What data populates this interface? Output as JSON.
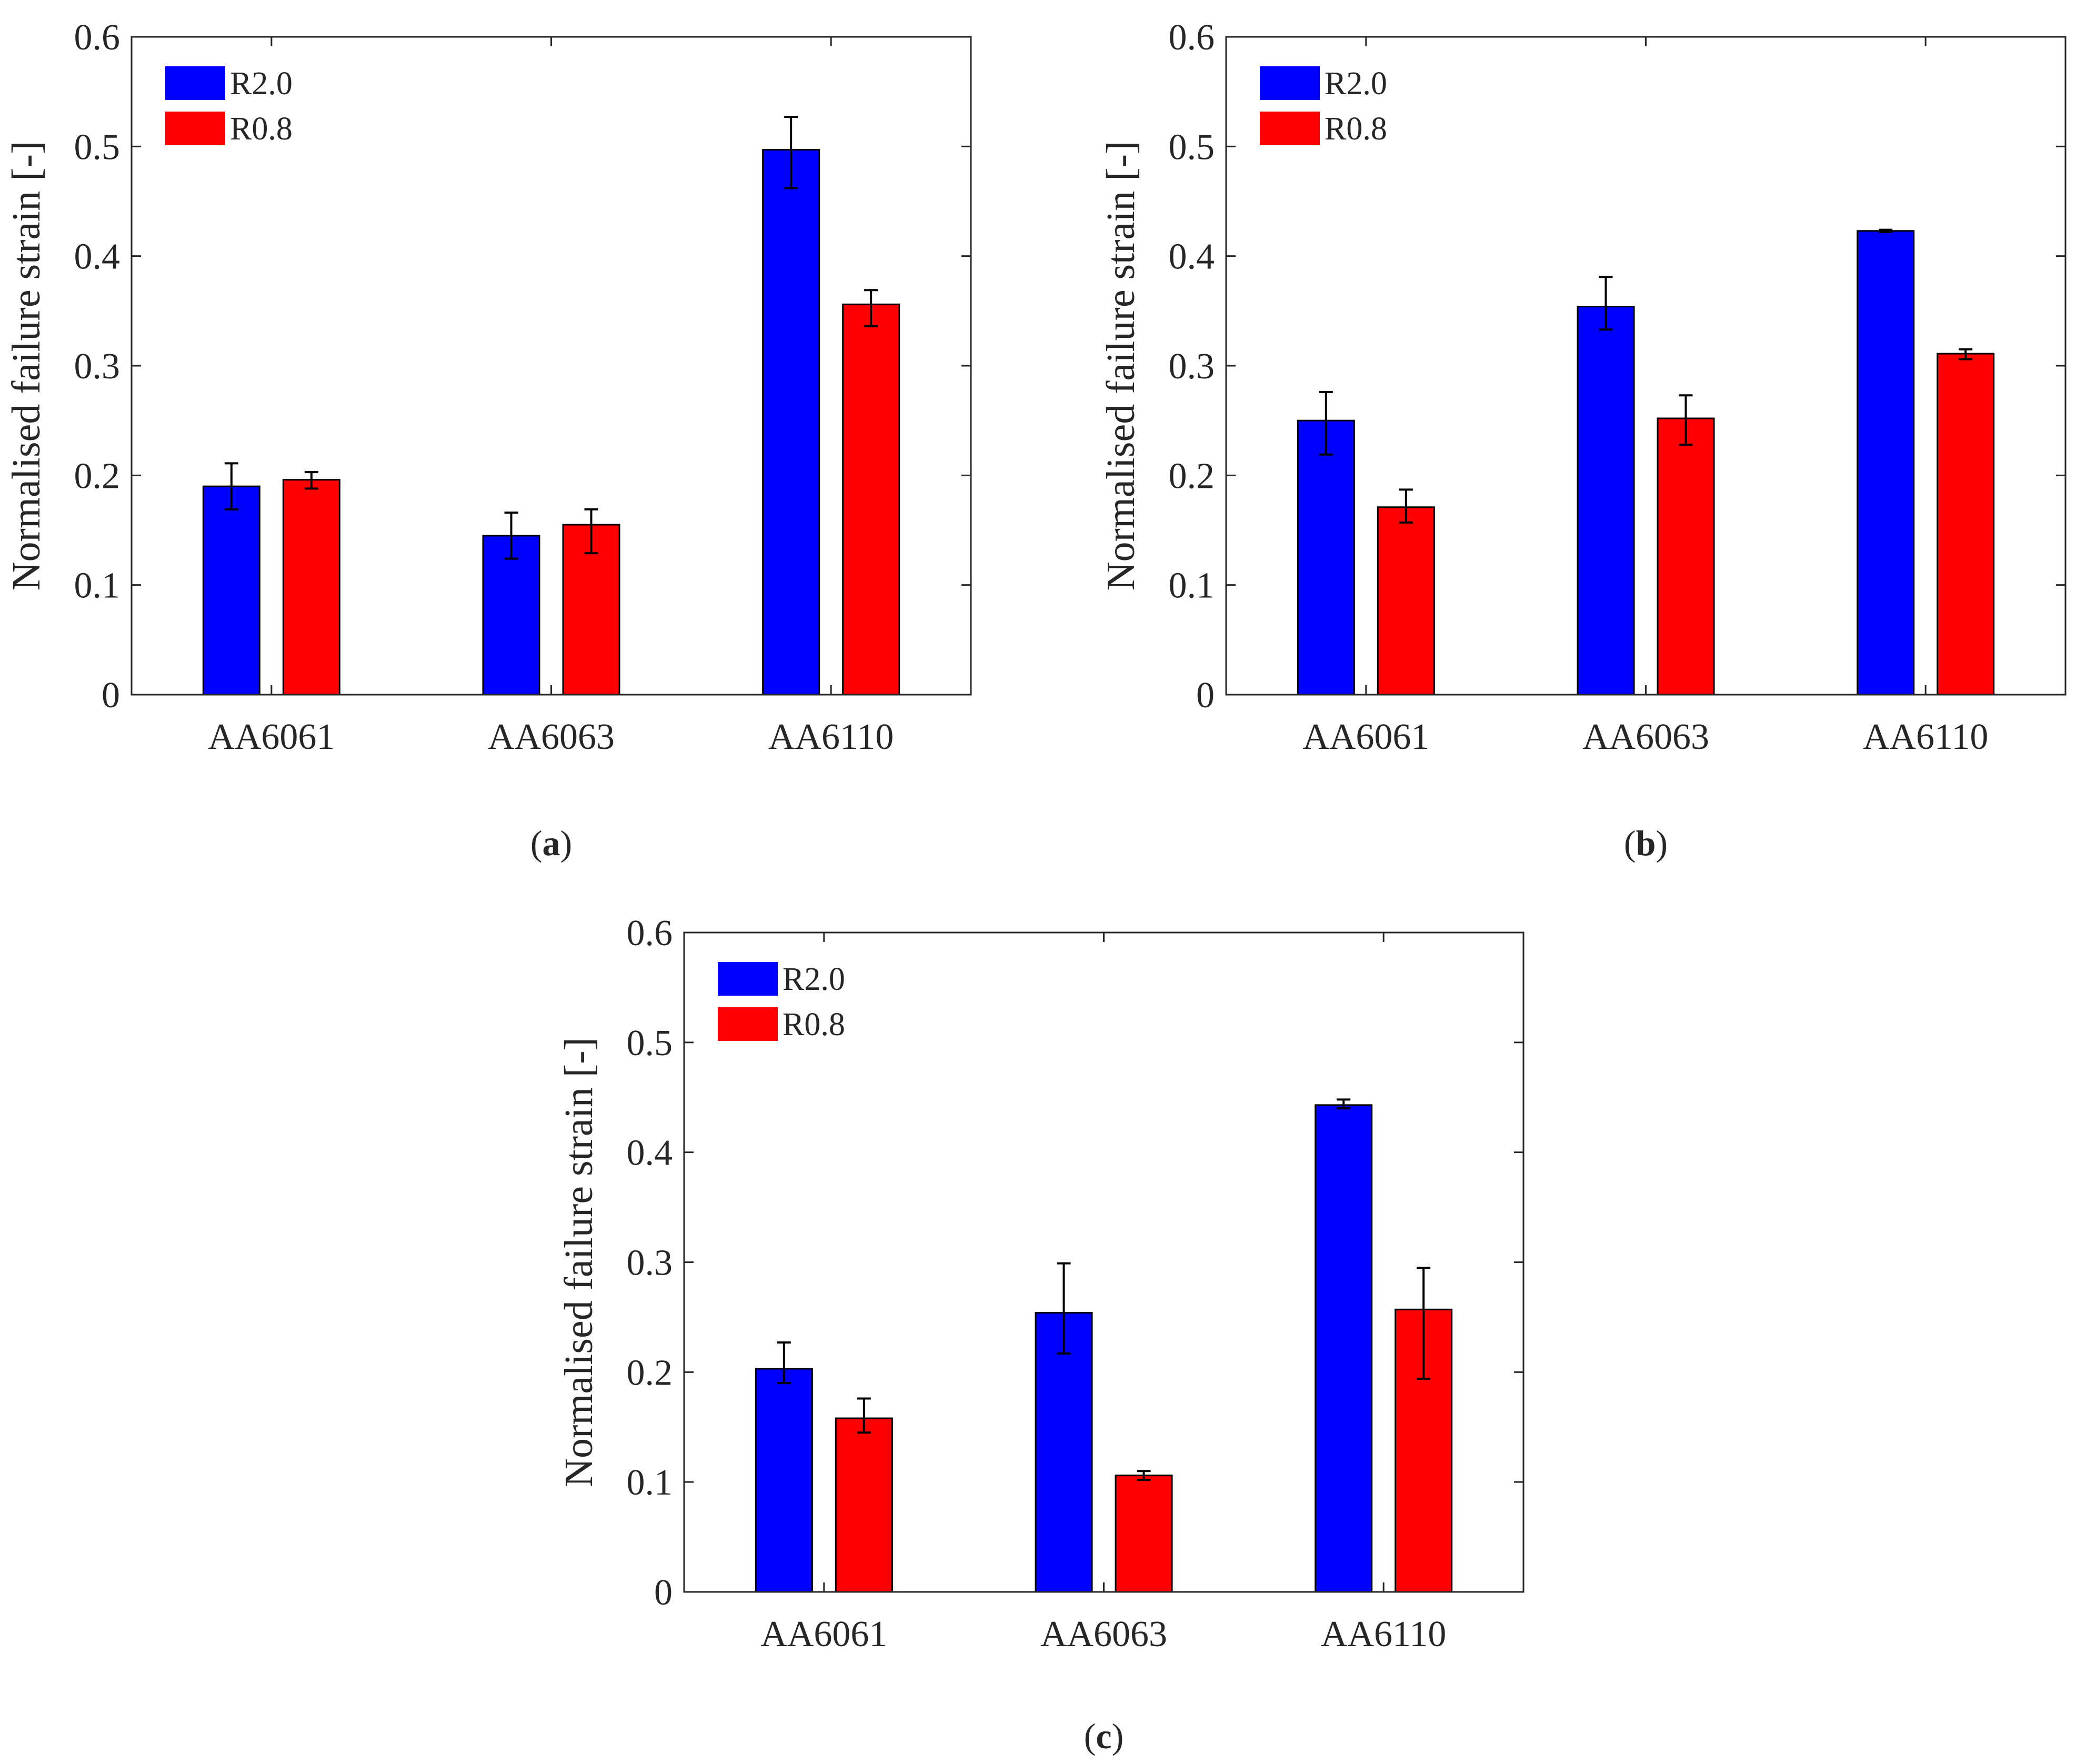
{
  "figure": {
    "panels": [
      {
        "caption_letter": "a",
        "caption_open": "(",
        "caption_close": ")"
      },
      {
        "caption_letter": "b",
        "caption_open": "(",
        "caption_close": ")"
      },
      {
        "caption_letter": "c",
        "caption_open": "(",
        "caption_close": ")"
      }
    ]
  },
  "chart_data": [
    {
      "type": "bar",
      "panel": "a",
      "title": "",
      "xlabel": "",
      "ylabel": "Normalised failure strain [-]",
      "ylim": [
        0,
        0.6
      ],
      "yticks": [
        0,
        0.1,
        0.2,
        0.3,
        0.4,
        0.5,
        0.6
      ],
      "ytick_labels": [
        "0",
        "0.1",
        "0.2",
        "0.3",
        "0.4",
        "0.5",
        "0.6"
      ],
      "grid": false,
      "legend_position": "top-left",
      "categories": [
        "AA6061",
        "AA6063",
        "AA6110"
      ],
      "series": [
        {
          "name": "R2.0",
          "color": "#0000ff",
          "values": [
            0.19,
            0.145,
            0.497
          ],
          "err_low": [
            0.169,
            0.124,
            0.462
          ],
          "err_high": [
            0.211,
            0.166,
            0.527
          ]
        },
        {
          "name": "R0.8",
          "color": "#ff0000",
          "values": [
            0.196,
            0.155,
            0.356
          ],
          "err_low": [
            0.188,
            0.129,
            0.336
          ],
          "err_high": [
            0.203,
            0.169,
            0.369
          ]
        }
      ]
    },
    {
      "type": "bar",
      "panel": "b",
      "title": "",
      "xlabel": "",
      "ylabel": "Normalised failure strain [-]",
      "ylim": [
        0,
        0.6
      ],
      "yticks": [
        0,
        0.1,
        0.2,
        0.3,
        0.4,
        0.5,
        0.6
      ],
      "ytick_labels": [
        "0",
        "0.1",
        "0.2",
        "0.3",
        "0.4",
        "0.5",
        "0.6"
      ],
      "grid": false,
      "legend_position": "top-left",
      "categories": [
        "AA6061",
        "AA6063",
        "AA6110"
      ],
      "series": [
        {
          "name": "R2.0",
          "color": "#0000ff",
          "values": [
            0.25,
            0.354,
            0.423
          ],
          "err_low": [
            0.219,
            0.333,
            0.422
          ],
          "err_high": [
            0.276,
            0.381,
            0.424
          ]
        },
        {
          "name": "R0.8",
          "color": "#ff0000",
          "values": [
            0.171,
            0.252,
            0.311
          ],
          "err_low": [
            0.157,
            0.228,
            0.306
          ],
          "err_high": [
            0.187,
            0.273,
            0.315
          ]
        }
      ]
    },
    {
      "type": "bar",
      "panel": "c",
      "title": "",
      "xlabel": "",
      "ylabel": "Normalised failure strain [-]",
      "ylim": [
        0,
        0.6
      ],
      "yticks": [
        0,
        0.1,
        0.2,
        0.3,
        0.4,
        0.5,
        0.6
      ],
      "ytick_labels": [
        "0",
        "0.1",
        "0.2",
        "0.3",
        "0.4",
        "0.5",
        "0.6"
      ],
      "grid": false,
      "legend_position": "top-left",
      "categories": [
        "AA6061",
        "AA6063",
        "AA6110"
      ],
      "series": [
        {
          "name": "R2.0",
          "color": "#0000ff",
          "values": [
            0.203,
            0.254,
            0.443
          ],
          "err_low": [
            0.19,
            0.217,
            0.44
          ],
          "err_high": [
            0.227,
            0.299,
            0.448
          ]
        },
        {
          "name": "R0.8",
          "color": "#ff0000",
          "values": [
            0.158,
            0.106,
            0.257
          ],
          "err_low": [
            0.145,
            0.102,
            0.194
          ],
          "err_high": [
            0.176,
            0.11,
            0.295
          ]
        }
      ]
    }
  ]
}
